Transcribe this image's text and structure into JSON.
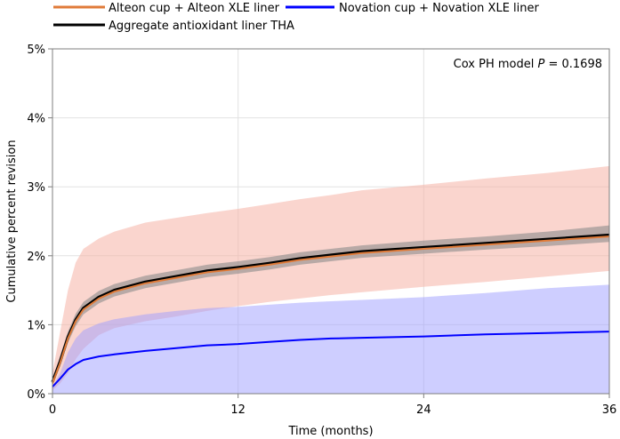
{
  "chart_data": {
    "type": "line",
    "xlabel": "Time (months)",
    "ylabel": "Cumulative percent revision",
    "xlim": [
      0,
      36
    ],
    "ylim": [
      0,
      5
    ],
    "xticks": [
      "0",
      "12",
      "24",
      "36"
    ],
    "yticks": [
      "0%",
      "1%",
      "2%",
      "3%",
      "4%",
      "5%"
    ],
    "grid": true,
    "legend_position": "top",
    "annotation": {
      "prefix": "Cox PH model ",
      "p_symbol": "P",
      "suffix": " = 0.1698"
    },
    "series": [
      {
        "name": "Alteon cup + Alteon XLE liner",
        "color": "#e07b39",
        "band_color": "#f6b3a5",
        "x": [
          0,
          0.5,
          1,
          1.5,
          2,
          3,
          4,
          6,
          8,
          10,
          12,
          14,
          16,
          18,
          20,
          24,
          28,
          32,
          36
        ],
        "y": [
          0.15,
          0.45,
          0.8,
          1.05,
          1.22,
          1.38,
          1.48,
          1.6,
          1.68,
          1.76,
          1.81,
          1.87,
          1.94,
          1.99,
          2.04,
          2.1,
          2.16,
          2.22,
          2.28
        ],
        "lower": [
          0.05,
          0.15,
          0.3,
          0.5,
          0.65,
          0.85,
          0.95,
          1.05,
          1.12,
          1.2,
          1.27,
          1.33,
          1.38,
          1.43,
          1.47,
          1.55,
          1.62,
          1.7,
          1.78
        ],
        "upper": [
          0.3,
          0.9,
          1.5,
          1.9,
          2.1,
          2.25,
          2.35,
          2.48,
          2.55,
          2.62,
          2.68,
          2.75,
          2.82,
          2.88,
          2.95,
          3.03,
          3.12,
          3.2,
          3.3
        ]
      },
      {
        "name": "Novation cup + Novation XLE liner",
        "color": "#0000ff",
        "band_color": "#9d9dff",
        "x": [
          0,
          0.5,
          1,
          1.5,
          2,
          3,
          4,
          6,
          8,
          10,
          12,
          14,
          16,
          18,
          20,
          24,
          28,
          32,
          36
        ],
        "y": [
          0.1,
          0.22,
          0.35,
          0.43,
          0.49,
          0.54,
          0.57,
          0.62,
          0.66,
          0.7,
          0.72,
          0.75,
          0.78,
          0.8,
          0.81,
          0.83,
          0.86,
          0.88,
          0.9
        ],
        "lower": [
          0,
          0,
          0,
          0,
          0,
          0,
          0,
          0,
          0,
          0,
          0,
          0,
          0,
          0,
          0,
          0,
          0,
          0,
          0
        ],
        "upper": [
          0.1,
          0.3,
          0.6,
          0.8,
          0.92,
          1.02,
          1.08,
          1.15,
          1.2,
          1.24,
          1.26,
          1.29,
          1.32,
          1.34,
          1.36,
          1.4,
          1.46,
          1.53,
          1.58
        ]
      },
      {
        "name": "Aggregate antioxidant liner THA",
        "color": "#000000",
        "band_color": "#8c8c8c",
        "x": [
          0,
          0.5,
          1,
          1.5,
          2,
          3,
          4,
          6,
          8,
          10,
          12,
          14,
          16,
          18,
          20,
          24,
          28,
          32,
          36
        ],
        "y": [
          0.17,
          0.47,
          0.82,
          1.07,
          1.24,
          1.4,
          1.5,
          1.62,
          1.7,
          1.78,
          1.83,
          1.89,
          1.96,
          2.01,
          2.06,
          2.12,
          2.18,
          2.24,
          2.3
        ],
        "lower": [
          0.12,
          0.4,
          0.74,
          0.98,
          1.15,
          1.31,
          1.41,
          1.53,
          1.61,
          1.69,
          1.74,
          1.8,
          1.87,
          1.92,
          1.97,
          2.03,
          2.09,
          2.14,
          2.2
        ],
        "upper": [
          0.22,
          0.55,
          0.9,
          1.16,
          1.33,
          1.49,
          1.59,
          1.71,
          1.79,
          1.87,
          1.92,
          1.98,
          2.05,
          2.1,
          2.15,
          2.22,
          2.28,
          2.35,
          2.44
        ]
      }
    ]
  }
}
